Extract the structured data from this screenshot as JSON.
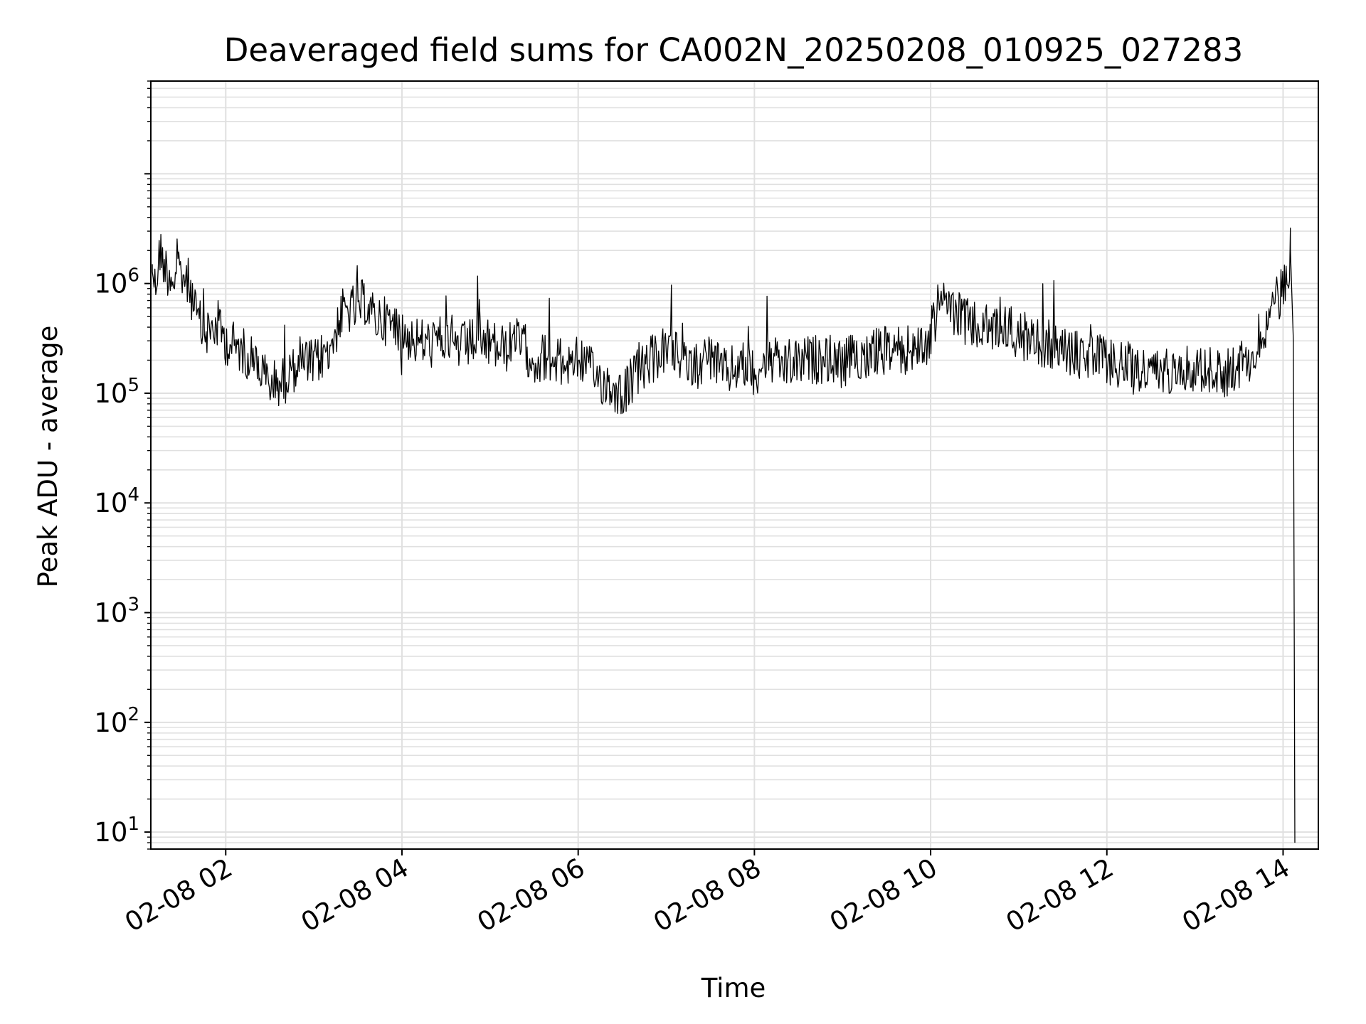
{
  "chart_data": {
    "type": "line",
    "title": "Deaveraged field sums for CA002N_20250208_010925_027283",
    "xlabel": "Time",
    "ylabel": "Peak ADU - average",
    "yscale": "log",
    "ylim": [
      7,
      70000000
    ],
    "xlim": [
      "2025-02-08 01:09",
      "2025-02-08 14:24"
    ],
    "grid": true,
    "legend": "none",
    "line_color": "#000000",
    "grid_color": "#e0e0e0",
    "x_ticks": [
      {
        "t": "2025-02-08 02:00",
        "label": "02-08 02"
      },
      {
        "t": "2025-02-08 04:00",
        "label": "02-08 04"
      },
      {
        "t": "2025-02-08 06:00",
        "label": "02-08 06"
      },
      {
        "t": "2025-02-08 08:00",
        "label": "02-08 08"
      },
      {
        "t": "2025-02-08 10:00",
        "label": "02-08 10"
      },
      {
        "t": "2025-02-08 12:00",
        "label": "02-08 12"
      },
      {
        "t": "2025-02-08 14:00",
        "label": "02-08 14"
      }
    ],
    "y_ticks": [
      {
        "v": 10,
        "base": "10",
        "exp": "1"
      },
      {
        "v": 100,
        "base": "10",
        "exp": "2"
      },
      {
        "v": 1000,
        "base": "10",
        "exp": "3"
      },
      {
        "v": 10000,
        "base": "10",
        "exp": "4"
      },
      {
        "v": 100000,
        "base": "10",
        "exp": "5"
      },
      {
        "v": 1000000,
        "base": "10",
        "exp": "6"
      }
    ],
    "series": [
      {
        "x": [
          "2025-02-08 01:10",
          "2025-02-08 01:12",
          "2025-02-08 01:15",
          "2025-02-08 01:20",
          "2025-02-08 01:25",
          "2025-02-08 01:30",
          "2025-02-08 01:35",
          "2025-02-08 01:40",
          "2025-02-08 01:45",
          "2025-02-08 01:50",
          "2025-02-08 01:55",
          "2025-02-08 02:00",
          "2025-02-08 02:10",
          "2025-02-08 02:20",
          "2025-02-08 02:30",
          "2025-02-08 02:40",
          "2025-02-08 02:50",
          "2025-02-08 03:00",
          "2025-02-08 03:10",
          "2025-02-08 03:20",
          "2025-02-08 03:30",
          "2025-02-08 03:35",
          "2025-02-08 03:40",
          "2025-02-08 03:50",
          "2025-02-08 04:00",
          "2025-02-08 04:10",
          "2025-02-08 04:20",
          "2025-02-08 04:30",
          "2025-02-08 04:40",
          "2025-02-08 04:50",
          "2025-02-08 05:00",
          "2025-02-08 05:10",
          "2025-02-08 05:20",
          "2025-02-08 05:30",
          "2025-02-08 05:40",
          "2025-02-08 05:50",
          "2025-02-08 06:00",
          "2025-02-08 06:10",
          "2025-02-08 06:20",
          "2025-02-08 06:30",
          "2025-02-08 06:40",
          "2025-02-08 06:50",
          "2025-02-08 07:00",
          "2025-02-08 07:10",
          "2025-02-08 07:20",
          "2025-02-08 07:30",
          "2025-02-08 07:40",
          "2025-02-08 07:50",
          "2025-02-08 08:00",
          "2025-02-08 08:10",
          "2025-02-08 08:20",
          "2025-02-08 08:30",
          "2025-02-08 08:40",
          "2025-02-08 08:50",
          "2025-02-08 09:00",
          "2025-02-08 09:10",
          "2025-02-08 09:20",
          "2025-02-08 09:30",
          "2025-02-08 09:40",
          "2025-02-08 09:50",
          "2025-02-08 09:58",
          "2025-02-08 10:05",
          "2025-02-08 10:10",
          "2025-02-08 10:20",
          "2025-02-08 10:30",
          "2025-02-08 10:40",
          "2025-02-08 10:50",
          "2025-02-08 11:00",
          "2025-02-08 11:10",
          "2025-02-08 11:20",
          "2025-02-08 11:30",
          "2025-02-08 11:40",
          "2025-02-08 11:50",
          "2025-02-08 12:00",
          "2025-02-08 12:10",
          "2025-02-08 12:20",
          "2025-02-08 12:30",
          "2025-02-08 12:40",
          "2025-02-08 12:50",
          "2025-02-08 13:00",
          "2025-02-08 13:10",
          "2025-02-08 13:20",
          "2025-02-08 13:30",
          "2025-02-08 13:40",
          "2025-02-08 13:50",
          "2025-02-08 14:00",
          "2025-02-08 14:03",
          "2025-02-08 14:05",
          "2025-02-08 14:07",
          "2025-02-08 14:08"
        ],
        "y": [
          1500000,
          900000,
          2000000,
          1300000,
          1100000,
          1200000,
          1000000,
          500000,
          350000,
          380000,
          420000,
          300000,
          250000,
          200000,
          120000,
          130000,
          200000,
          180000,
          250000,
          550000,
          600000,
          700000,
          500000,
          450000,
          350000,
          300000,
          280000,
          320000,
          260000,
          300000,
          280000,
          250000,
          300000,
          200000,
          220000,
          180000,
          220000,
          150000,
          120000,
          100000,
          150000,
          200000,
          250000,
          200000,
          180000,
          220000,
          150000,
          180000,
          160000,
          200000,
          180000,
          190000,
          200000,
          210000,
          180000,
          220000,
          230000,
          250000,
          240000,
          260000,
          280000,
          600000,
          700000,
          500000,
          400000,
          380000,
          400000,
          350000,
          300000,
          280000,
          250000,
          220000,
          210000,
          200000,
          180000,
          170000,
          150000,
          160000,
          180000,
          170000,
          160000,
          150000,
          180000,
          250000,
          500000,
          900000,
          1200000,
          2000000,
          300000,
          8
        ]
      }
    ]
  }
}
